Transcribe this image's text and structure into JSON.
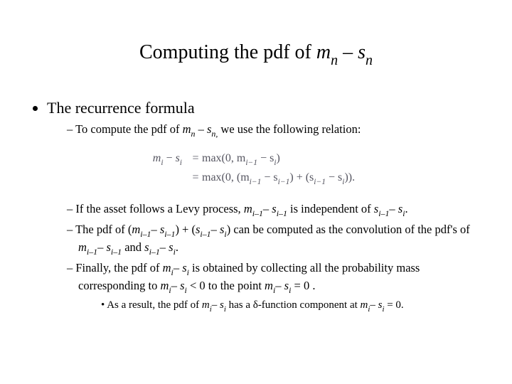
{
  "title_prefix": "Computing the pdf of ",
  "title_m": "m",
  "title_n1": "n",
  "title_dash": " – ",
  "title_s": "s",
  "title_n2": "n",
  "bullet_main": "The recurrence formula",
  "d1_a": "To compute the pdf of ",
  "d1_m": "m",
  "d1_n1": "n",
  "d1_dash": " – ",
  "d1_s": "s",
  "d1_n2": "n,",
  "d1_b": " we use the following relation:",
  "eq_lhs_var": "m",
  "eq_lhs_i": "i",
  "eq_lhs_minus": " − ",
  "eq_lhs_var2": "s",
  "eq_lhs_i2": "i",
  "eq1_rhs": "max(0, m",
  "eq1_sub1": "i−1",
  "eq1_mid": " − s",
  "eq1_sub2": "i",
  "eq1_end": ")",
  "eq2_rhs": "max(0, (m",
  "eq2_sub1": "i−1",
  "eq2_mid1": " − s",
  "eq2_sub2": "i−1",
  "eq2_mid2": ") + (s",
  "eq2_sub3": "i−1",
  "eq2_mid3": " − s",
  "eq2_sub4": "i",
  "eq2_end": ")).",
  "d2_a": "If the asset follows a Levy process, ",
  "d2_m": "m",
  "d2_s1": "i–1",
  "d2_dash1": "– ",
  "d2_sv": "s",
  "d2_s2": "i–1",
  "d2_mid": " is independent of ",
  "d2_sv2": "s",
  "d2_s3": "i–1",
  "d2_dash2": "– ",
  "d2_sv3": "s",
  "d2_s4": "i",
  "d2_end": ".",
  "d3_a": "The pdf of (",
  "d3_m": "m",
  "d3_s1": "i–1",
  "d3_dash1": "– ",
  "d3_sv": "s",
  "d3_s2": "i–1",
  "d3_mid1": ") + (",
  "d3_sv2": "s",
  "d3_s3": "i–1",
  "d3_dash2": "– ",
  "d3_sv3": "s",
  "d3_s4": "i",
  "d3_mid2": ") can be computed as the convolution of the pdf's of ",
  "d3_m2": "m",
  "d3_s5": "i–1",
  "d3_dash3": "– ",
  "d3_sv4": "s",
  "d3_s6": "i–1",
  "d3_mid3": " and ",
  "d3_sv5": "s",
  "d3_s7": "i–1",
  "d3_dash4": "– ",
  "d3_sv6": "s",
  "d3_s8": "i",
  "d3_end": ".",
  "d4_a": "Finally, the pdf of ",
  "d4_m": "m",
  "d4_s1": "i",
  "d4_dash1": "– ",
  "d4_sv": "s",
  "d4_s2": "i",
  "d4_mid1": " is obtained by collecting all the probability mass corresponding to ",
  "d4_m2": "m",
  "d4_s3": "i",
  "d4_dash2": "– ",
  "d4_sv2": "s",
  "d4_s4": "i",
  "d4_mid2": " < 0 to the point ",
  "d4_m3": "m",
  "d4_s5": "i",
  "d4_dash3": "– ",
  "d4_sv3": "s",
  "d4_s6": "i",
  "d4_end": " = 0 .",
  "dd_a": "As a result, the pdf of ",
  "dd_m": "m",
  "dd_s1": "i",
  "dd_dash1": "– ",
  "dd_sv": "s",
  "dd_s2": "i",
  "dd_mid": " has a δ-function component at ",
  "dd_m2": "m",
  "dd_s3": "i",
  "dd_dash2": "– ",
  "dd_sv2": "s",
  "dd_s4": "i",
  "dd_end": " = 0."
}
